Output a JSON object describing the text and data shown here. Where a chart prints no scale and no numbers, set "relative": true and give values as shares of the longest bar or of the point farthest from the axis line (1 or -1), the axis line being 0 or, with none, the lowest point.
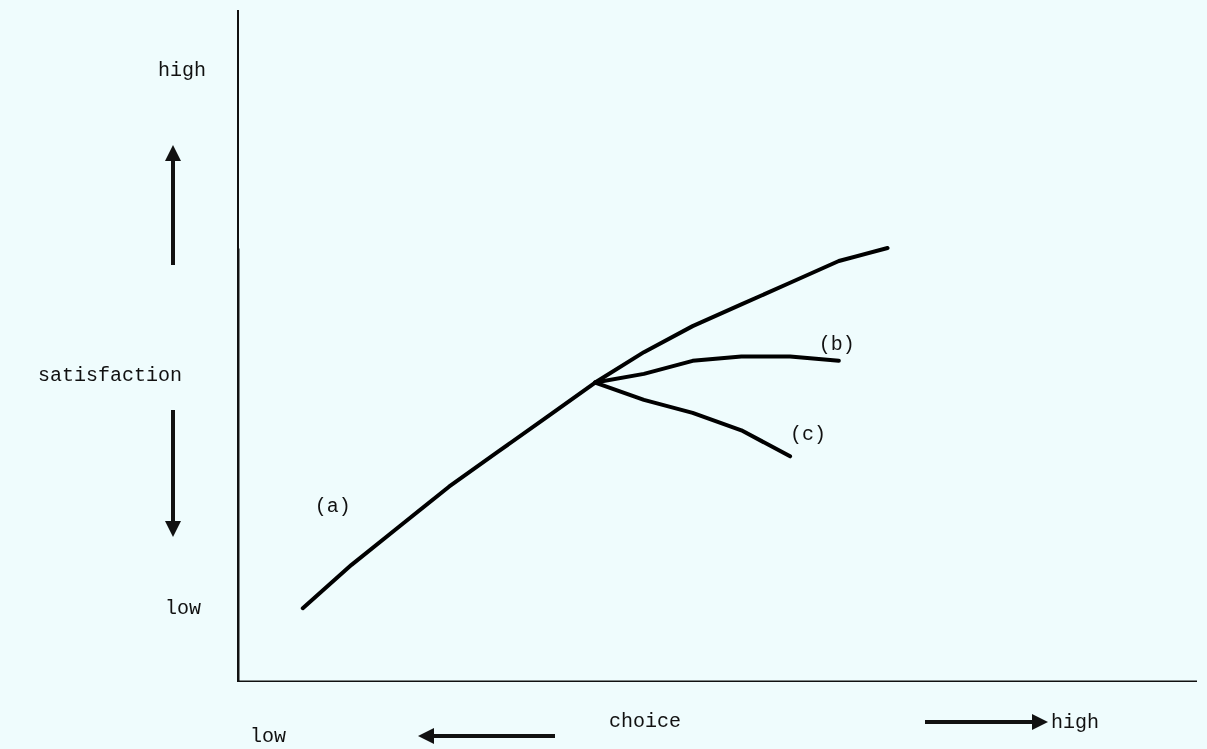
{
  "chart_data": {
    "type": "line",
    "relative": true,
    "xlabel": "choice",
    "ylabel": "satisfaction",
    "annotations": [
      "high",
      "low",
      "low",
      "high"
    ],
    "categories": [
      null,
      null,
      null,
      null,
      null,
      null,
      null,
      null,
      null,
      null,
      null,
      null,
      null,
      null,
      null,
      null,
      null,
      null,
      null,
      null
    ],
    "series": [
      {
        "name": "(a)",
        "color": "#000000",
        "values": [
          null,
          0.17,
          0.27,
          0.36,
          0.45,
          0.53,
          0.61,
          0.69,
          0.76,
          0.82,
          0.87,
          0.92,
          0.97,
          1,
          null,
          null,
          null,
          null,
          null,
          null
        ]
      },
      {
        "name": "(b)",
        "color": "#000000",
        "values": [
          null,
          null,
          null,
          null,
          null,
          null,
          null,
          0.69,
          0.71,
          0.74,
          0.75,
          0.75,
          0.74,
          null,
          null,
          null,
          null,
          null,
          null,
          null
        ]
      },
      {
        "name": "(c)",
        "color": "#000000",
        "values": [
          null,
          null,
          null,
          null,
          null,
          null,
          null,
          0.69,
          0.65,
          0.62,
          0.58,
          0.52,
          null,
          null,
          null,
          null,
          null,
          null,
          null,
          null
        ]
      }
    ],
    "marker": "none",
    "line_style": "solid",
    "grid": false
  }
}
